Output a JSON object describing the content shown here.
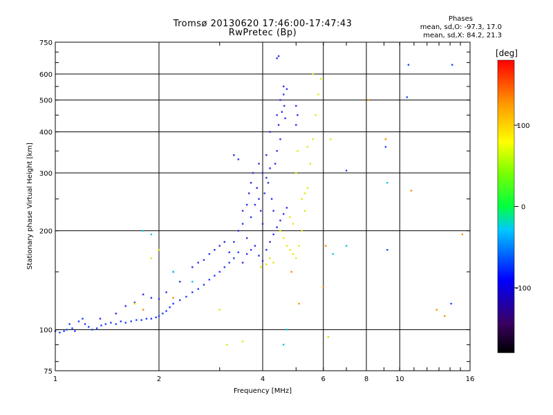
{
  "chart_data": {
    "type": "scatter",
    "title": "Tromsø 20130620 17:46:00-17:47:43",
    "subtitle": "RwPretec (Bp)",
    "xlabel": "Frequency [MHz]",
    "ylabel": "Stationary phase Virtual Height [km]",
    "x_scale": "log",
    "y_scale": "log",
    "xlim": [
      1,
      16
    ],
    "ylim": [
      75,
      750
    ],
    "x_ticks": [
      1,
      2,
      4,
      6,
      8,
      10,
      16
    ],
    "x_tick_labels": [
      "1",
      "2",
      "4",
      "6",
      "8",
      "10",
      "16"
    ],
    "x_gridlines": [
      2,
      4,
      6,
      8,
      10
    ],
    "y_ticks": [
      75,
      100,
      200,
      300,
      400,
      500,
      600,
      750
    ],
    "y_tick_labels": [
      "75",
      "100",
      "200",
      "300",
      "400",
      "500",
      "600",
      "750"
    ],
    "y_gridlines": [
      100,
      200,
      300,
      400,
      500,
      600
    ],
    "grid": true,
    "colorbar": {
      "label": "[deg]",
      "ticks": [
        100,
        0,
        -100
      ],
      "tick_labels": [
        "100",
        "0",
        "-100"
      ],
      "range": [
        -180,
        180
      ],
      "colors": [
        "#000000",
        "#3a0060",
        "#0000ff",
        "#00c8ff",
        "#00ff40",
        "#ffff00",
        "#ff9900",
        "#ff0000"
      ]
    },
    "stats": {
      "heading": "Phases",
      "o_line": "mean, sd,O: -97.3, 17.0",
      "x_line": "mean, sd,X:  84.2, 21.3"
    },
    "series": [
      {
        "trace": "low-F-layer-O",
        "color": "#1e3cff",
        "points": [
          [
            1.0,
            99
          ],
          [
            1.03,
            98
          ],
          [
            1.06,
            99
          ],
          [
            1.08,
            100
          ],
          [
            1.1,
            104
          ],
          [
            1.12,
            101
          ],
          [
            1.14,
            99
          ],
          [
            1.17,
            106
          ],
          [
            1.2,
            108
          ],
          [
            1.22,
            104
          ],
          [
            1.25,
            102
          ],
          [
            1.28,
            100
          ],
          [
            1.32,
            101
          ],
          [
            1.36,
            103
          ],
          [
            1.4,
            104
          ],
          [
            1.45,
            105
          ],
          [
            1.5,
            104
          ],
          [
            1.55,
            106
          ],
          [
            1.6,
            105
          ],
          [
            1.66,
            106
          ],
          [
            1.72,
            107
          ],
          [
            1.78,
            107
          ],
          [
            1.84,
            108
          ],
          [
            1.9,
            108
          ],
          [
            1.96,
            109
          ],
          [
            2.0,
            110
          ],
          [
            2.05,
            112
          ],
          [
            2.1,
            114
          ],
          [
            2.15,
            117
          ],
          [
            2.2,
            120
          ],
          [
            2.3,
            123
          ],
          [
            2.4,
            126
          ],
          [
            2.5,
            130
          ],
          [
            2.6,
            133
          ],
          [
            2.7,
            137
          ],
          [
            2.8,
            142
          ],
          [
            2.9,
            146
          ],
          [
            3.0,
            150
          ],
          [
            3.1,
            155
          ],
          [
            3.2,
            160
          ],
          [
            3.3,
            165
          ],
          [
            3.4,
            172
          ]
        ]
      },
      {
        "trace": "upper-scatter-O",
        "color": "#2a2fe6",
        "points": [
          [
            1.35,
            108
          ],
          [
            1.5,
            112
          ],
          [
            1.6,
            118
          ],
          [
            1.7,
            121
          ],
          [
            1.8,
            128
          ],
          [
            1.9,
            125
          ],
          [
            2.0,
            124
          ],
          [
            2.1,
            130
          ],
          [
            2.2,
            150
          ],
          [
            2.3,
            140
          ],
          [
            2.5,
            155
          ],
          [
            2.6,
            160
          ],
          [
            2.7,
            163
          ],
          [
            2.8,
            170
          ],
          [
            2.9,
            175
          ],
          [
            3.0,
            180
          ],
          [
            3.1,
            185
          ],
          [
            3.2,
            172
          ],
          [
            3.3,
            185
          ],
          [
            3.4,
            200
          ],
          [
            3.5,
            210
          ],
          [
            3.5,
            230
          ],
          [
            3.6,
            240
          ],
          [
            3.6,
            190
          ],
          [
            3.65,
            260
          ],
          [
            3.7,
            280
          ],
          [
            3.7,
            220
          ],
          [
            3.75,
            300
          ],
          [
            3.8,
            240
          ],
          [
            3.85,
            270
          ],
          [
            3.9,
            320
          ],
          [
            3.9,
            250
          ],
          [
            3.95,
            230
          ],
          [
            4.0,
            210
          ],
          [
            4.0,
            300
          ],
          [
            4.05,
            260
          ],
          [
            4.1,
            340
          ],
          [
            4.1,
            290
          ],
          [
            4.15,
            280
          ],
          [
            4.2,
            310
          ],
          [
            4.2,
            400
          ],
          [
            4.25,
            250
          ],
          [
            4.3,
            230
          ],
          [
            4.35,
            320
          ],
          [
            4.4,
            350
          ],
          [
            4.4,
            450
          ],
          [
            4.45,
            420
          ],
          [
            4.5,
            380
          ],
          [
            4.5,
            500
          ],
          [
            4.55,
            460
          ],
          [
            4.6,
            520
          ],
          [
            4.6,
            550
          ],
          [
            4.62,
            480
          ],
          [
            4.65,
            440
          ],
          [
            4.7,
            540
          ],
          [
            4.4,
            670
          ],
          [
            4.45,
            680
          ],
          [
            3.3,
            340
          ],
          [
            3.4,
            330
          ],
          [
            3.5,
            160
          ],
          [
            3.6,
            170
          ],
          [
            3.7,
            175
          ],
          [
            3.8,
            180
          ],
          [
            3.9,
            168
          ],
          [
            4.0,
            162
          ],
          [
            4.1,
            175
          ],
          [
            4.2,
            185
          ],
          [
            4.3,
            195
          ],
          [
            4.4,
            205
          ],
          [
            4.5,
            215
          ],
          [
            4.6,
            225
          ],
          [
            4.7,
            235
          ],
          [
            5.0,
            480
          ],
          [
            5.05,
            450
          ],
          [
            5.0,
            420
          ]
        ]
      },
      {
        "trace": "X-mode",
        "color": "#e6e600",
        "points": [
          [
            4.5,
            200
          ],
          [
            4.6,
            190
          ],
          [
            4.7,
            180
          ],
          [
            4.8,
            175
          ],
          [
            4.9,
            170
          ],
          [
            5.0,
            165
          ],
          [
            5.1,
            180
          ],
          [
            5.2,
            200
          ],
          [
            5.3,
            230
          ],
          [
            5.4,
            270
          ],
          [
            5.5,
            320
          ],
          [
            5.6,
            380
          ],
          [
            5.7,
            450
          ],
          [
            5.8,
            520
          ],
          [
            5.9,
            580
          ],
          [
            5.6,
            600
          ],
          [
            5.2,
            250
          ],
          [
            5.3,
            260
          ],
          [
            5.0,
            300
          ],
          [
            4.3,
            160
          ],
          [
            4.2,
            165
          ],
          [
            4.1,
            158
          ],
          [
            3.95,
            155
          ],
          [
            1.7,
            120
          ],
          [
            1.9,
            165
          ],
          [
            2.0,
            175
          ],
          [
            3.0,
            115
          ],
          [
            3.15,
            90
          ],
          [
            3.5,
            92
          ],
          [
            6.2,
            95
          ],
          [
            6.3,
            380
          ],
          [
            4.9,
            210
          ],
          [
            5.05,
            350
          ],
          [
            4.8,
            220
          ],
          [
            5.4,
            360
          ]
        ]
      },
      {
        "trace": "sparse-high-freq",
        "color": "#2040ff",
        "points": [
          [
            7.0,
            305
          ],
          [
            10.5,
            510
          ],
          [
            10.6,
            640
          ],
          [
            14.2,
            640
          ],
          [
            14.1,
            120
          ],
          [
            9.2,
            175
          ],
          [
            9.1,
            360
          ]
        ]
      },
      {
        "trace": "orange-red-scattered",
        "color": "#ff8a00",
        "points": [
          [
            8.1,
            500
          ],
          [
            9.1,
            380
          ],
          [
            10.8,
            265
          ],
          [
            12.8,
            115
          ],
          [
            13.5,
            110
          ],
          [
            15.2,
            195
          ],
          [
            6.1,
            180
          ],
          [
            5.1,
            120
          ],
          [
            4.85,
            150
          ],
          [
            2.2,
            125
          ],
          [
            1.8,
            115
          ],
          [
            6.0,
            135
          ]
        ]
      },
      {
        "trace": "cyan-green",
        "color": "#00c8e6",
        "points": [
          [
            1.8,
            200
          ],
          [
            1.9,
            195
          ],
          [
            2.2,
            150
          ],
          [
            2.5,
            140
          ],
          [
            6.4,
            170
          ],
          [
            4.7,
            100
          ],
          [
            4.6,
            90
          ],
          [
            7.0,
            180
          ],
          [
            9.2,
            280
          ]
        ]
      }
    ]
  }
}
